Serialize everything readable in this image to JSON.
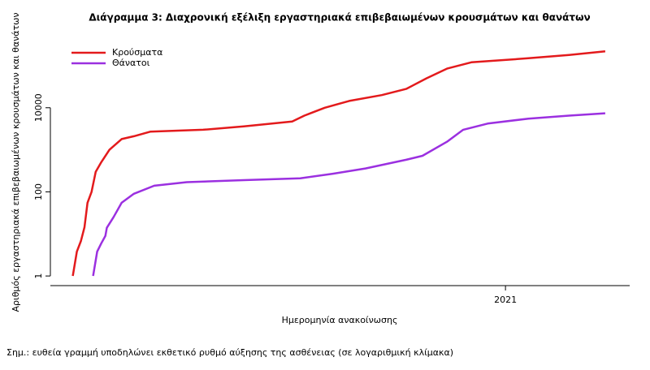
{
  "chart_data": {
    "type": "line",
    "title": "Διάγραμμα 3: Διαχρονική εξέλιξη εργαστηριακά επιβεβαιωμένων κρουσμάτων και θανάτων",
    "x_label": "Ημερομηνία ανακοίνωσης",
    "y_label": "Αριθμός εργαστηριακά επιβεβαιωμένων κρουσμάτων και θανάτων",
    "note": "Σημ.: ευθεία γραμμή υποδηλώνει εκθετικό ρυθμό αύξησης της ασθένειας (σε λογαριθμική κλίμακα)",
    "log_y": true,
    "legend": "top-left",
    "xlim": [
      2020.106,
      2021.244
    ],
    "xticks": [
      2021
    ],
    "ylim": [
      0.59,
      1200000
    ],
    "yticks": [
      1,
      100,
      10000
    ],
    "series": [
      {
        "name": "Κρούσματα",
        "color": "#e31a1c",
        "x": [
          2020.15,
          2020.158,
          2020.166,
          2020.173,
          2020.179,
          2020.187,
          2020.195,
          2020.206,
          2020.222,
          2020.246,
          2020.27,
          2020.302,
          2020.406,
          2020.486,
          2020.581,
          2020.605,
          2020.645,
          2020.693,
          2020.757,
          2020.805,
          2020.845,
          2020.885,
          2020.933,
          2021.045,
          2021.125,
          2021.196
        ],
        "values": [
          1,
          3.8,
          6.8,
          14.5,
          55,
          100,
          300,
          510,
          1000,
          1800,
          2100,
          2700,
          3000,
          3600,
          4700,
          6500,
          10000,
          14500,
          20000,
          28000,
          50000,
          85000,
          120000,
          150000,
          180000,
          220000
        ]
      },
      {
        "name": "Θάνατοι",
        "color": "#9b30e0",
        "x": [
          2020.19,
          2020.198,
          2020.206,
          2020.214,
          2020.217,
          2020.23,
          2020.246,
          2020.27,
          2020.31,
          2020.374,
          2020.486,
          2020.597,
          2020.661,
          2020.725,
          2020.805,
          2020.837,
          2020.885,
          2020.917,
          2020.965,
          2021.045,
          2021.125,
          2021.196
        ],
        "values": [
          1,
          3.8,
          6,
          9,
          14,
          25,
          55,
          90,
          140,
          170,
          190,
          210,
          270,
          360,
          580,
          720,
          1550,
          3000,
          4200,
          5500,
          6500,
          7400
        ]
      }
    ]
  }
}
